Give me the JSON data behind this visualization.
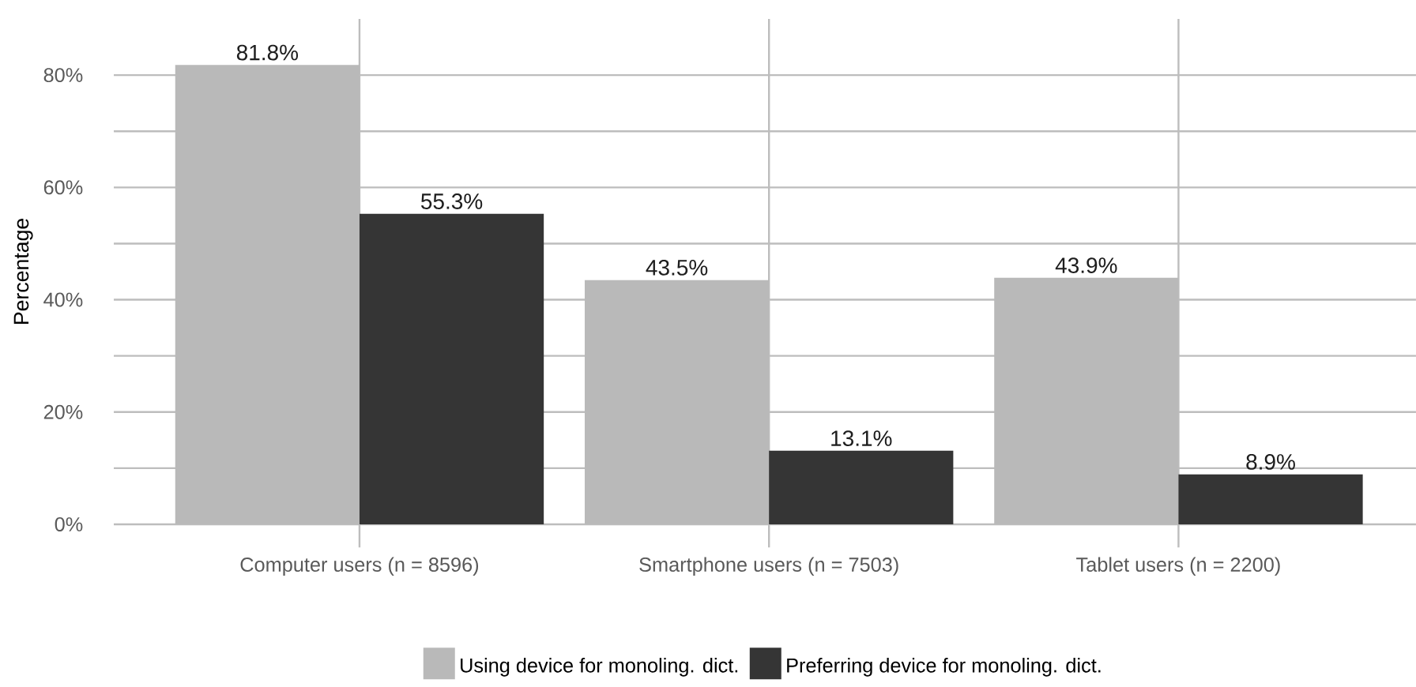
{
  "chart_data": {
    "type": "bar",
    "ylabel": "Percentage",
    "categories": [
      "Computer users (n = 8596)",
      "Smartphone users (n = 7503)",
      "Tablet users (n = 2200)"
    ],
    "series": [
      {
        "name": "Using device for monoling. dict.",
        "color": "#b9b9b9",
        "values": [
          81.8,
          43.5,
          43.9
        ],
        "value_labels": [
          "81.8%",
          "43.5%",
          "43.9%"
        ]
      },
      {
        "name": "Preferring device for monoling. dict.",
        "color": "#353535",
        "values": [
          55.3,
          13.1,
          8.9
        ],
        "value_labels": [
          "55.3%",
          "13.1%",
          "8.9%"
        ]
      }
    ],
    "ylim": [
      0,
      90
    ],
    "yticks": [
      {
        "value": 0,
        "label": "0%"
      },
      {
        "value": 10,
        "label": null
      },
      {
        "value": 20,
        "label": "20%"
      },
      {
        "value": 30,
        "label": null
      },
      {
        "value": 40,
        "label": "40%"
      },
      {
        "value": 50,
        "label": null
      },
      {
        "value": 60,
        "label": "60%"
      },
      {
        "value": 70,
        "label": null
      },
      {
        "value": 80,
        "label": "80%"
      }
    ],
    "grid": true,
    "legend": "bottom"
  }
}
